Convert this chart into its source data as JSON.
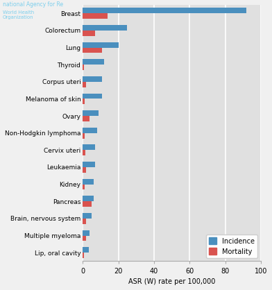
{
  "categories": [
    "Breast",
    "Colorectum",
    "Lung",
    "Thyroid",
    "Corpus uteri",
    "Melanoma of skin",
    "Ovary",
    "Non-Hodgkin lymphoma",
    "Cervix uteri",
    "Leukaemia",
    "Kidney",
    "Pancreas",
    "Brain, nervous system",
    "Multiple myeloma",
    "Lip, oral cavity"
  ],
  "incidence": [
    92,
    25,
    20,
    12,
    11,
    11,
    9,
    8,
    7,
    7,
    6,
    6,
    5,
    4,
    3.5
  ],
  "mortality": [
    14,
    7,
    11,
    0.5,
    2,
    1,
    4,
    1,
    1.5,
    2,
    1,
    5,
    2,
    2,
    0.5
  ],
  "incidence_color": "#4a8fbe",
  "mortality_color": "#d9534f",
  "background_color": "#e0e0e0",
  "xlabel": "ASR (W) rate per 100,000",
  "xlim": [
    0,
    100
  ],
  "xticks": [
    0,
    20,
    40,
    60,
    80,
    100
  ],
  "legend_incidence": "Incidence",
  "legend_mortality": "Mortality",
  "bar_height": 0.32,
  "title_text": "national Agency for Re",
  "subtitle_text": "World Health\nOrganization"
}
